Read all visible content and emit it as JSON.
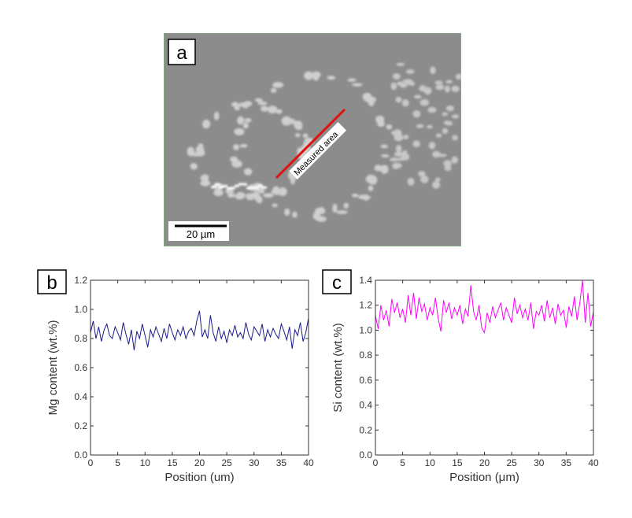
{
  "panel_a": {
    "label": "a",
    "annotation": "Measured area",
    "scale_bar": "20 µm",
    "line_color": "#e01010"
  },
  "chart_data": [
    {
      "type": "line",
      "panel_label": "b",
      "title": "",
      "xlabel": "Position (um)",
      "ylabel": "Mg content (wt.%)",
      "xlim": [
        0,
        40
      ],
      "ylim": [
        0,
        1.2
      ],
      "xticks": [
        "0",
        "5",
        "10",
        "15",
        "20",
        "25",
        "30",
        "35",
        "40"
      ],
      "yticks": [
        "0.0",
        "0.2",
        "0.4",
        "0.6",
        "0.8",
        "1.0",
        "1.2"
      ],
      "grid": false,
      "color": "#1a1a8c",
      "series": [
        {
          "name": "Mg",
          "x_start": 0,
          "x_step": 0.5,
          "values": [
            0.84,
            0.92,
            0.8,
            0.88,
            0.78,
            0.86,
            0.9,
            0.82,
            0.8,
            0.88,
            0.84,
            0.79,
            0.91,
            0.83,
            0.76,
            0.86,
            0.72,
            0.85,
            0.8,
            0.9,
            0.82,
            0.74,
            0.86,
            0.81,
            0.88,
            0.83,
            0.78,
            0.87,
            0.8,
            0.9,
            0.84,
            0.79,
            0.86,
            0.82,
            0.88,
            0.8,
            0.85,
            0.87,
            0.82,
            0.92,
            0.99,
            0.81,
            0.86,
            0.8,
            0.96,
            0.84,
            0.78,
            0.88,
            0.8,
            0.85,
            0.77,
            0.86,
            0.82,
            0.89,
            0.81,
            0.84,
            0.8,
            0.91,
            0.83,
            0.79,
            0.88,
            0.85,
            0.82,
            0.9,
            0.78,
            0.86,
            0.81,
            0.87,
            0.83,
            0.8,
            0.9,
            0.85,
            0.79,
            0.88,
            0.73,
            0.86,
            0.82,
            0.91,
            0.78,
            0.84,
            0.94
          ]
        }
      ]
    },
    {
      "type": "line",
      "panel_label": "c",
      "title": "",
      "xlabel": "Position (μm)",
      "ylabel": "Si content (wt.%)",
      "xlim": [
        0,
        40
      ],
      "ylim": [
        0,
        1.4
      ],
      "xticks": [
        "0",
        "5",
        "10",
        "15",
        "20",
        "25",
        "30",
        "35",
        "40"
      ],
      "yticks": [
        "0.0",
        "0.2",
        "0.4",
        "0.6",
        "0.8",
        "1.0",
        "1.2",
        "1.4"
      ],
      "grid": false,
      "color": "#ff00ff",
      "series": [
        {
          "name": "Si",
          "x_start": 0,
          "x_step": 0.5,
          "values": [
            1.12,
            1.01,
            1.2,
            1.08,
            1.16,
            1.03,
            1.25,
            1.14,
            1.22,
            1.1,
            1.17,
            1.06,
            1.28,
            1.12,
            1.3,
            1.09,
            1.26,
            1.15,
            1.21,
            1.08,
            1.18,
            1.12,
            1.26,
            1.1,
            0.99,
            1.24,
            1.14,
            1.22,
            1.09,
            1.18,
            1.12,
            1.2,
            1.05,
            1.17,
            1.11,
            1.36,
            1.15,
            1.08,
            1.2,
            1.02,
            0.98,
            1.14,
            1.06,
            1.19,
            1.1,
            1.16,
            1.22,
            1.08,
            1.18,
            1.12,
            1.06,
            1.26,
            1.13,
            1.2,
            1.1,
            1.17,
            1.08,
            1.22,
            1.01,
            1.15,
            1.12,
            1.2,
            1.07,
            1.24,
            1.1,
            1.18,
            1.05,
            1.21,
            1.12,
            1.16,
            1.02,
            1.19,
            1.11,
            1.27,
            1.08,
            1.22,
            1.4,
            1.06,
            1.3,
            1.03,
            1.15
          ]
        }
      ]
    }
  ]
}
